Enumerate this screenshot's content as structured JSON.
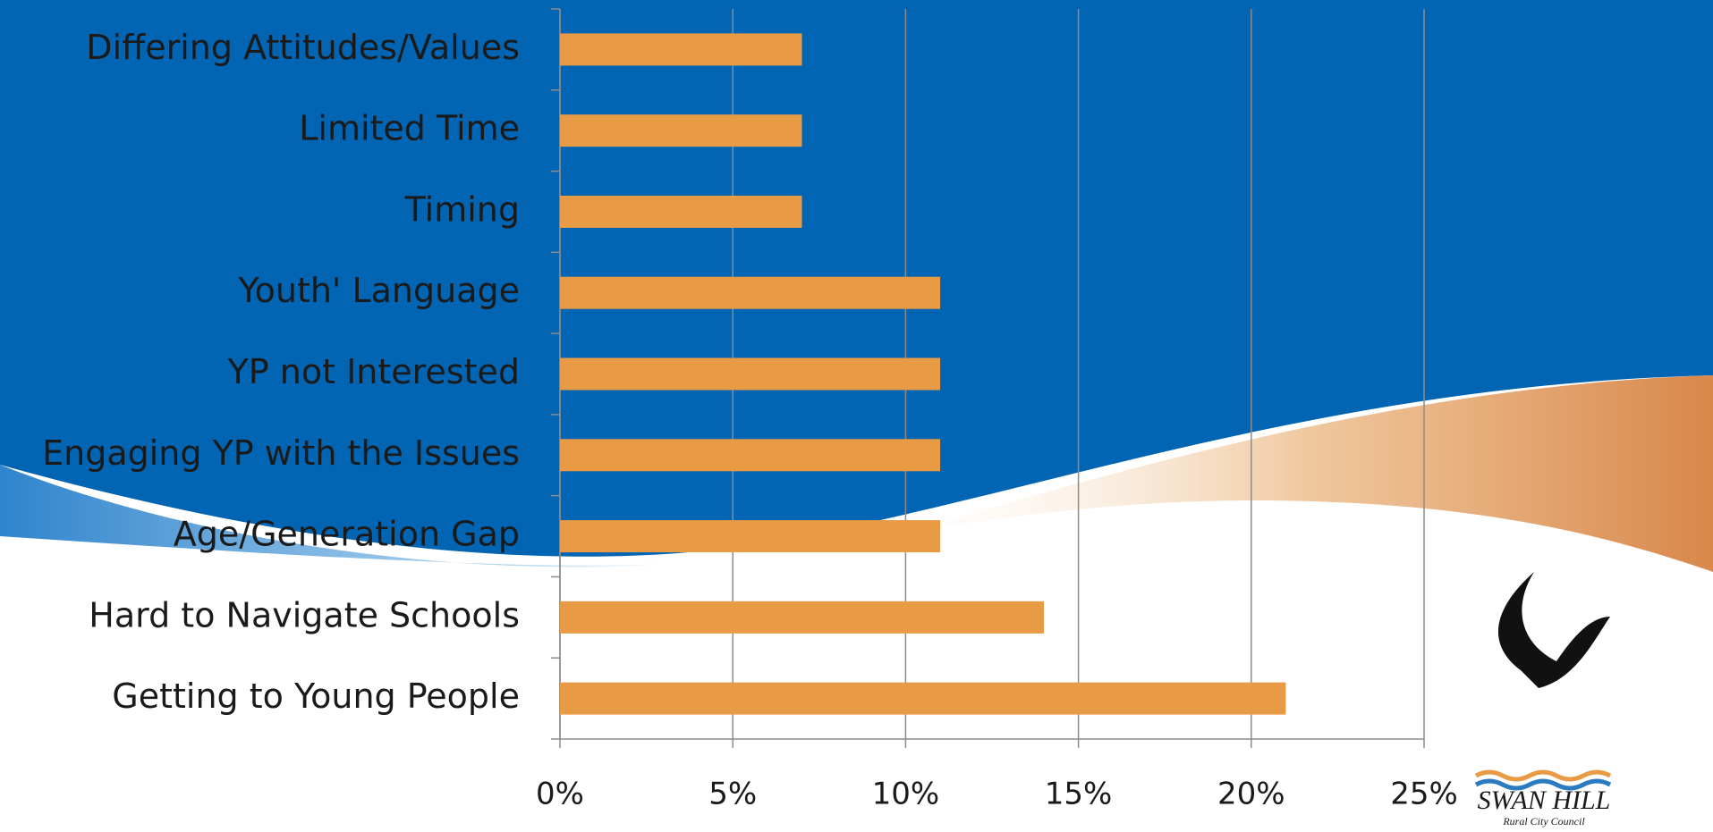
{
  "chart_data": {
    "type": "bar",
    "orientation": "horizontal",
    "categories": [
      "Differing Attitudes/Values",
      "Limited Time",
      "Timing",
      "Youth' Language",
      "YP not Interested",
      "Engaging YP with the Issues",
      "Age/Generation Gap",
      "Hard to Navigate Schools",
      "Getting to Young People"
    ],
    "values": [
      7,
      7,
      7,
      11,
      11,
      11,
      11,
      14,
      21
    ],
    "color": "#e99a45",
    "xlim": [
      0,
      25
    ],
    "xticks": [
      {
        "value": 0,
        "label": "0%"
      },
      {
        "value": 5,
        "label": "5%"
      },
      {
        "value": 10,
        "label": "10%"
      },
      {
        "value": 15,
        "label": "15%"
      },
      {
        "value": 20,
        "label": "20%"
      },
      {
        "value": 25,
        "label": "25%"
      }
    ],
    "grid": true
  },
  "logo": {
    "name": "SWAN HILL",
    "subtitle": "Rural City Council"
  }
}
